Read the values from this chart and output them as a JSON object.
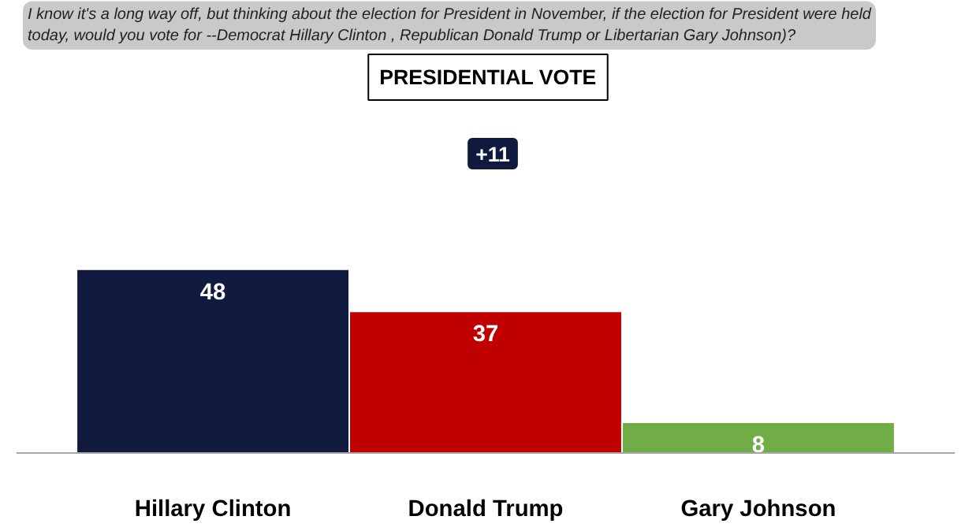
{
  "chart_data": {
    "type": "bar",
    "title": "PRESIDENTIAL VOTE",
    "subtitle": "I know it's a long way off, but thinking about the election for President in November, if the election for President were held\ntoday, would you vote for --Democrat Hillary Clinton , Republican Donald Trump or Libertarian Gary Johnson)?",
    "annotations": [
      "+11"
    ],
    "categories": [
      "Hillary Clinton",
      "Donald Trump",
      "Gary Johnson"
    ],
    "values": [
      48,
      37,
      8
    ],
    "colors": [
      "#0f1a3e",
      "#c00000",
      "#70ad47"
    ],
    "data_labels": true,
    "grid": false
  }
}
